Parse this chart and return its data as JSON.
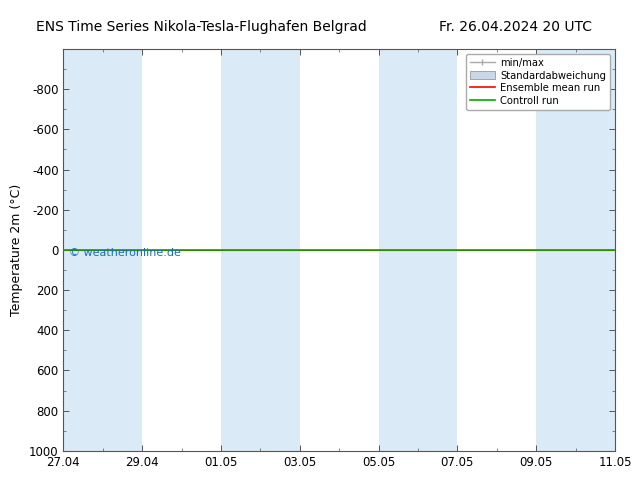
{
  "title_left": "ENS Time Series Nikola-Tesla-Flughafen Belgrad",
  "title_right": "Fr. 26.04.2024 20 UTC",
  "ylabel": "Temperature 2m (°C)",
  "watermark": "© weatheronline.de",
  "ylim_bottom": 1000,
  "ylim_top": -1000,
  "yticks": [
    -800,
    -600,
    -400,
    -200,
    0,
    200,
    400,
    600,
    800,
    1000
  ],
  "xtick_labels": [
    "27.04",
    "29.04",
    "01.05",
    "03.05",
    "05.05",
    "07.05",
    "09.05",
    "11.05"
  ],
  "x_start": 0,
  "x_end": 14,
  "xtick_positions": [
    0,
    2,
    4,
    6,
    8,
    10,
    12,
    14
  ],
  "shaded_bands": [
    {
      "x_start": 0,
      "x_end": 2
    },
    {
      "x_start": 4,
      "x_end": 6
    },
    {
      "x_start": 8,
      "x_end": 10
    },
    {
      "x_start": 12,
      "x_end": 14
    }
  ],
  "shade_color": "#daeaf7",
  "background_color": "#ffffff",
  "plot_bg_color": "#ffffff",
  "control_run_color": "#00aa00",
  "ensemble_mean_color": "#ff0000",
  "minmax_color": "#aaaaaa",
  "std_color": "#c8d8e8",
  "legend_labels": [
    "min/max",
    "Standardabweichung",
    "Ensemble mean run",
    "Controll run"
  ],
  "title_fontsize": 10,
  "tick_fontsize": 8.5,
  "label_fontsize": 9,
  "watermark_color": "#1a6eb5",
  "watermark_fontsize": 8
}
